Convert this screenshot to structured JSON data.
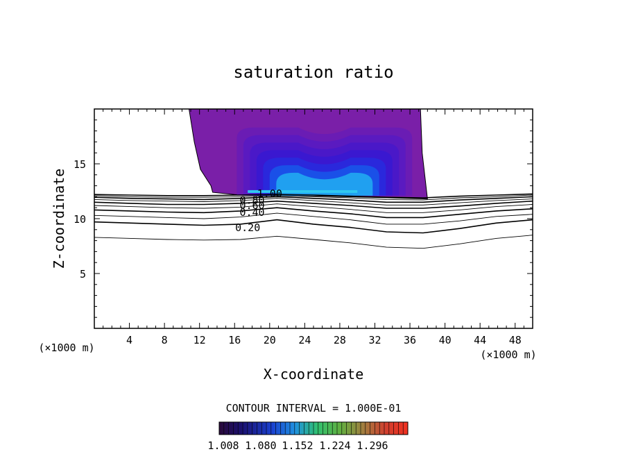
{
  "chart_data": {
    "type": "contour",
    "title": "saturation ratio",
    "xlabel": "X-coordinate",
    "ylabel": "Z-coordinate",
    "x_unit": "(×1000 m)",
    "xlim": [
      0,
      50
    ],
    "ylim": [
      0,
      20
    ],
    "x_ticks": [
      "4",
      "8",
      "12",
      "16",
      "20",
      "24",
      "28",
      "32",
      "36",
      "40",
      "44",
      "48"
    ],
    "y_ticks": [
      "5",
      "10",
      "15"
    ],
    "contour_interval_label": "CONTOUR INTERVAL = 1.000E-01",
    "contour_labels": [
      "1.00",
      "0.80",
      "0.60",
      "0.40",
      "0.20"
    ],
    "colorbar_labels": [
      "1.008",
      "1.080",
      "1.152",
      "1.224",
      "1.296"
    ],
    "shaded_region": {
      "x_range": [
        13.5,
        38.0
      ],
      "z_range": [
        11.8,
        20.0
      ],
      "colors": [
        "#7a1fa8",
        "#6a1cb4",
        "#5a1ac0",
        "#4a18c8",
        "#3a18d0",
        "#2a28dc",
        "#1a50e8",
        "#20a0f0"
      ]
    },
    "contour_lines": [
      {
        "level": 0.1,
        "z": [
          8.3,
          8.2,
          8.1,
          8.05,
          8.1,
          8.4,
          8.1,
          7.8,
          7.4,
          7.3,
          7.7,
          8.2,
          8.5
        ]
      },
      {
        "level": 0.2,
        "z": [
          9.7,
          9.6,
          9.5,
          9.4,
          9.5,
          9.9,
          9.5,
          9.2,
          8.8,
          8.7,
          9.1,
          9.6,
          9.9
        ]
      },
      {
        "level": 0.3,
        "z": [
          10.3,
          10.2,
          10.1,
          10.0,
          10.15,
          10.5,
          10.2,
          9.9,
          9.5,
          9.5,
          9.8,
          10.2,
          10.4
        ]
      },
      {
        "level": 0.4,
        "z": [
          10.8,
          10.7,
          10.6,
          10.55,
          10.7,
          11.0,
          10.7,
          10.45,
          10.1,
          10.1,
          10.4,
          10.7,
          10.9
        ]
      },
      {
        "level": 0.5,
        "z": [
          11.2,
          11.1,
          11.0,
          10.95,
          11.05,
          11.35,
          11.1,
          10.85,
          10.55,
          10.55,
          10.8,
          11.1,
          11.3
        ]
      },
      {
        "level": 0.6,
        "z": [
          11.5,
          11.4,
          11.3,
          11.3,
          11.4,
          11.6,
          11.4,
          11.2,
          10.95,
          10.95,
          11.15,
          11.4,
          11.6
        ]
      },
      {
        "level": 0.7,
        "z": [
          11.75,
          11.65,
          11.6,
          11.55,
          11.65,
          11.85,
          11.65,
          11.45,
          11.25,
          11.25,
          11.45,
          11.65,
          11.8
        ]
      },
      {
        "level": 0.8,
        "z": [
          11.95,
          11.85,
          11.8,
          11.75,
          11.85,
          12.0,
          11.85,
          11.7,
          11.5,
          11.5,
          11.7,
          11.85,
          12.0
        ]
      },
      {
        "level": 0.9,
        "z": [
          12.1,
          12.0,
          11.95,
          11.95,
          12.0,
          12.1,
          12.0,
          11.9,
          11.75,
          11.7,
          11.9,
          12.0,
          12.15
        ]
      },
      {
        "level": 1.0,
        "z": [
          12.2,
          12.15,
          12.1,
          12.1,
          12.15,
          12.2,
          12.15,
          12.05,
          11.95,
          11.9,
          12.05,
          12.15,
          12.25
        ]
      }
    ]
  }
}
